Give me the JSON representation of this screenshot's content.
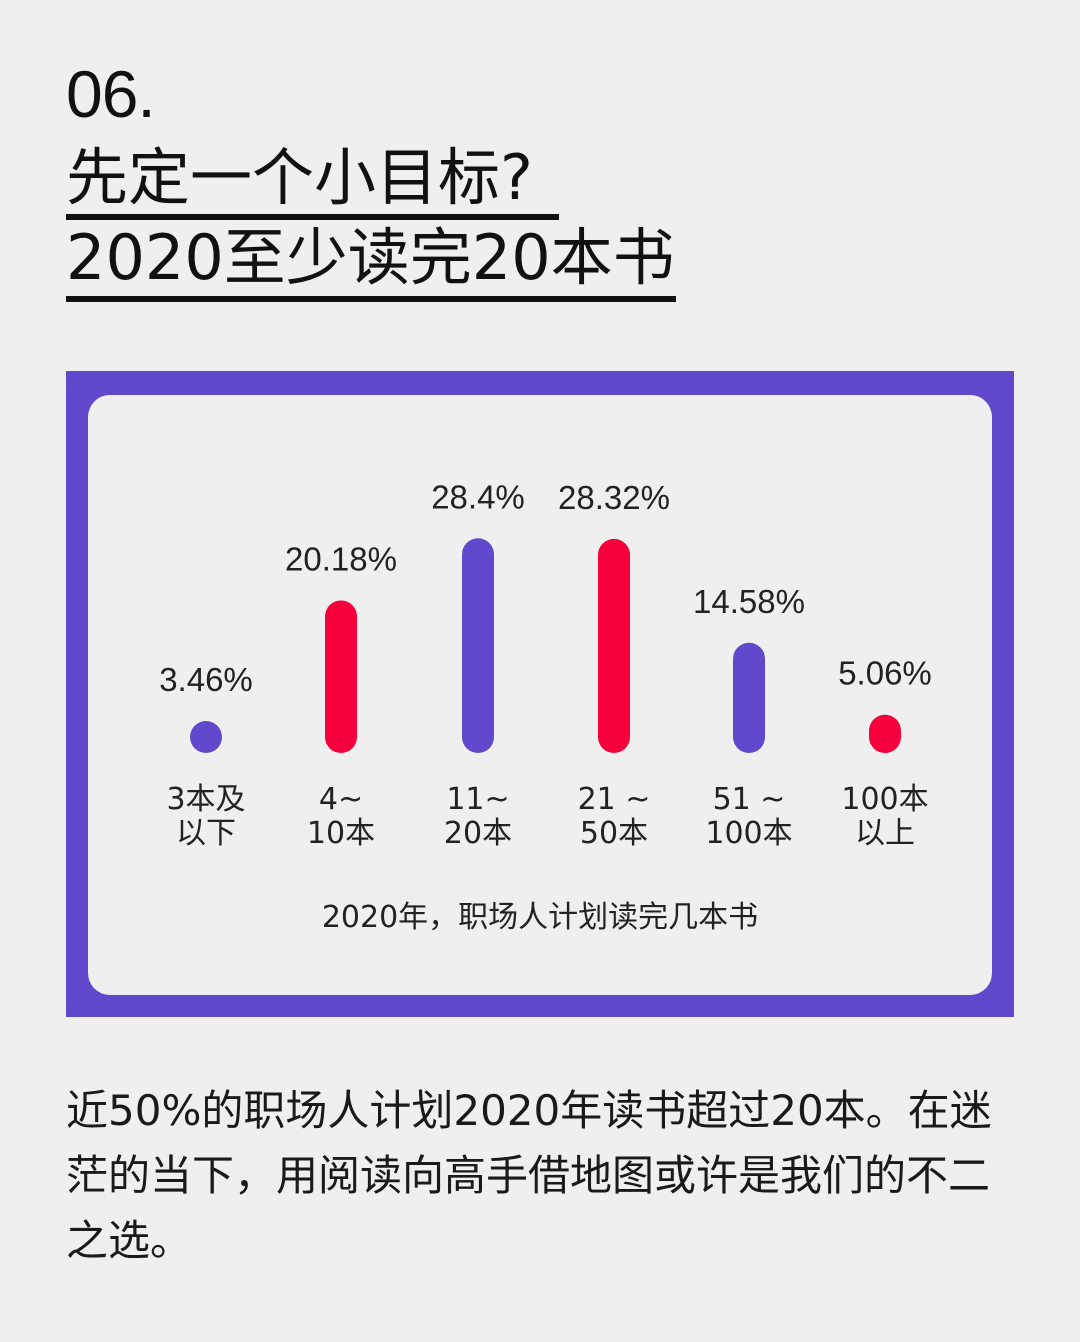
{
  "header": {
    "number": "06.",
    "title_line1": "先定一个小目标?",
    "title_line2": "2020至少读完20本书"
  },
  "colors": {
    "purple": "#6248cc",
    "red": "#f5003c",
    "background": "#efefef"
  },
  "chart_data": {
    "type": "bar",
    "title": "2020年，职场人计划读完几本书",
    "categories": [
      "3本及以下",
      "4~10本",
      "11~20本",
      "21~50本",
      "51~100本",
      "100本以上"
    ],
    "category_lines": [
      [
        "3本及",
        "以下"
      ],
      [
        "4~",
        "10本"
      ],
      [
        "11~",
        "20本"
      ],
      [
        "21 ~",
        "50本"
      ],
      [
        "51 ~",
        "100本"
      ],
      [
        "100本",
        "以上"
      ]
    ],
    "values": [
      3.46,
      20.18,
      28.4,
      28.32,
      14.58,
      5.06
    ],
    "value_labels": [
      "3.46%",
      "20.18%",
      "28.4%",
      "28.32%",
      "14.58%",
      "5.06%"
    ],
    "bar_colors": [
      "#6248cc",
      "#f5003c",
      "#6248cc",
      "#f5003c",
      "#6248cc",
      "#f5003c"
    ],
    "unit": "%",
    "grid": false,
    "legend": "none"
  },
  "body": {
    "text": "近50%的职场人计划2020年读书超过20本。在迷茫的当下，用阅读向高手借地图或许是我们的不二之选。"
  }
}
